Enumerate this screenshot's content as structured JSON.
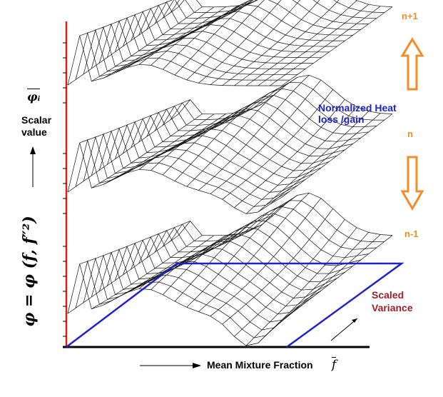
{
  "labels": {
    "scalar_symbol": "φᵢ",
    "scalar_value": "Scalar\nvalue",
    "phi_equation": "φ = φ (f, f″²)",
    "level_top": "n+1",
    "level_mid": "n",
    "level_bottom": "n-1",
    "heat_loss": "Normalized Heat\nloss /gain",
    "scaled_variance": "Scaled\nVariance",
    "mean_mixture_fraction": "Mean Mixture Fraction",
    "f_symbol": "f"
  },
  "colors": {
    "y_axis": "#d42020",
    "x_axis": "#000000",
    "mesh": "#111111",
    "plane": "#1e22c8",
    "orange_arrows": "#f28c28",
    "maroon_text": "#a01e28"
  }
}
